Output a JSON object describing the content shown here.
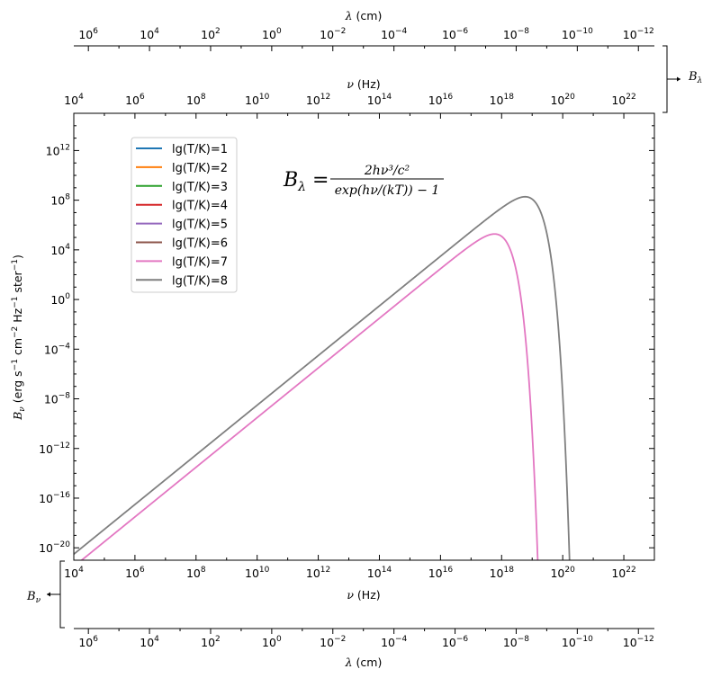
{
  "chart_data": {
    "type": "line",
    "title": "",
    "formula": {
      "lhs": "B",
      "lhs_sub": "λ",
      "eq": " = ",
      "num": "2hν³/c²",
      "den": "exp(hν/(kT)) − 1"
    },
    "ylabel": {
      "main": "B",
      "sub": "ν",
      "units_a": " (erg s",
      "exp_a": "−1",
      "units_b": " cm",
      "exp_b": "−2",
      "units_c": " Hz",
      "exp_c": "−1",
      "units_d": " ster",
      "exp_d": "−1",
      "units_e": ")"
    },
    "x_nu_label": {
      "sym": "ν",
      "unit": " (Hz)"
    },
    "x_lambda_label": {
      "sym": "λ",
      "unit": " (cm)"
    },
    "side_label_top": {
      "main": "B",
      "sub": "λ"
    },
    "side_label_bottom": {
      "main": "B",
      "sub": "ν"
    },
    "x_scale": "log",
    "y_scale": "log",
    "xlim_log10_nu_Hz": [
      4,
      23
    ],
    "ylim_log10": [
      -21,
      15
    ],
    "x_major_ticks_exp": [
      4,
      6,
      8,
      10,
      12,
      14,
      16,
      18,
      20,
      22
    ],
    "y_major_ticks_exp": [
      -20,
      -16,
      -12,
      -8,
      -4,
      0,
      4,
      8,
      12
    ],
    "lambda_ticks_exp": [
      6,
      4,
      2,
      0,
      -2,
      -4,
      -6,
      -8,
      -10,
      -12
    ],
    "tick_base": "10",
    "legend_position": "upper-left",
    "grid": false,
    "series": [
      {
        "name": "lg(T/K)=1",
        "log10_T": 1,
        "color": "#1f77b4"
      },
      {
        "name": "lg(T/K)=2",
        "log10_T": 2,
        "color": "#ff7f0e"
      },
      {
        "name": "lg(T/K)=3",
        "log10_T": 3,
        "color": "#2ca02c"
      },
      {
        "name": "lg(T/K)=4",
        "log10_T": 4,
        "color": "#d62728"
      },
      {
        "name": "lg(T/K)=5",
        "log10_T": 5,
        "color": "#9467bd"
      },
      {
        "name": "lg(T/K)=6",
        "log10_T": 6,
        "color": "#8c564b"
      },
      {
        "name": "lg(T/K)=7",
        "log10_T": 7,
        "color": "#e377c2"
      },
      {
        "name": "lg(T/K)=8",
        "log10_T": 8,
        "color": "#7f7f7f"
      }
    ]
  }
}
